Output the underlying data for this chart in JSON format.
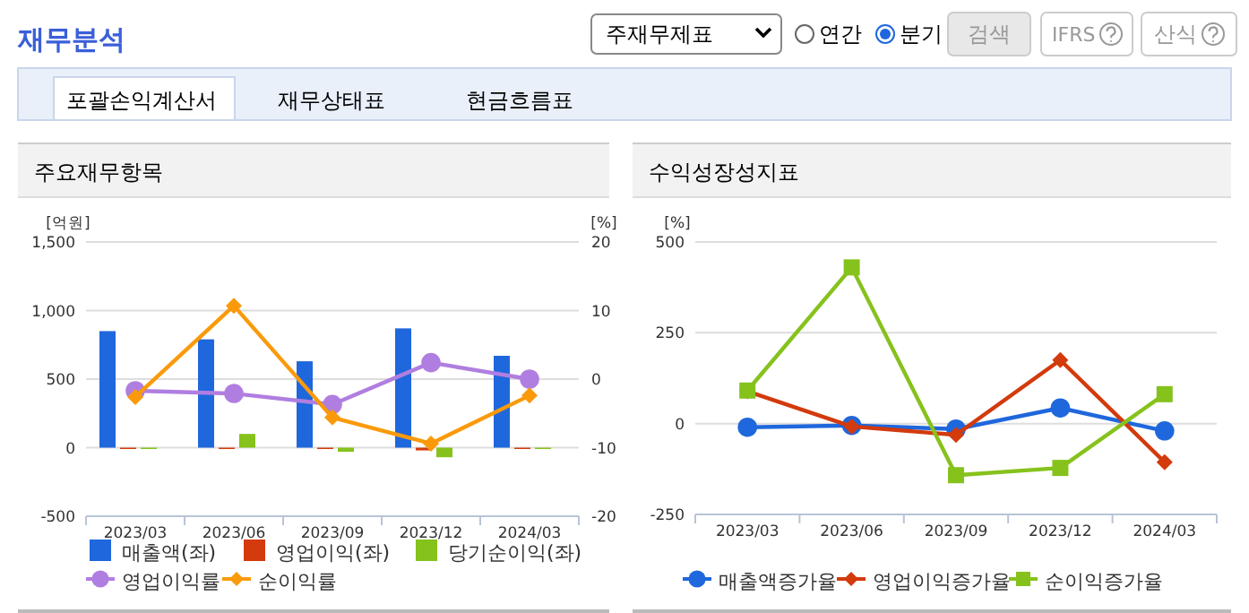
{
  "chart_data": [
    {
      "type": "other",
      "title": "재무분석",
      "annotations": [
        "주재무제표",
        "연간",
        "분기",
        "검색",
        "IFRS",
        "산식",
        "포괄손익계산서",
        "재무상태표",
        "현금흐름표"
      ]
    },
    {
      "type": "bar",
      "title": "주요재무항목",
      "ylabel": "[억원]",
      "y2label": "[%]",
      "categories": [
        "2023/03",
        "2023/06",
        "2023/09",
        "2023/12",
        "2024/03"
      ],
      "series": [
        {
          "name": "매출액(좌)",
          "color": "#1f67dc",
          "values": [
            850,
            790,
            630,
            870,
            670
          ]
        },
        {
          "name": "영업이익(좌)",
          "color": "#d33a0c",
          "values": [
            -10,
            -10,
            -10,
            -20,
            -10
          ]
        },
        {
          "name": "당기순이익(좌)",
          "color": "#86c21c",
          "values": [
            -10,
            100,
            -30,
            -70,
            -10
          ]
        },
        {
          "name": "영업이익률",
          "type": "line",
          "axis": "y2",
          "marker": "circle",
          "color": "#b07ee0",
          "values": [
            -1.7,
            -2.1,
            -3.7,
            2.4,
            0
          ]
        },
        {
          "name": "순이익률",
          "type": "line",
          "axis": "y2",
          "marker": "diamond",
          "color": "#fa9a0b",
          "values": [
            -2.6,
            10.7,
            -5.6,
            -9.4,
            -2.4
          ]
        }
      ],
      "ylim": [
        -500,
        1500
      ],
      "yticks": [
        -500,
        0,
        {
          "value": 500,
          "label": "500"
        },
        {
          "value": 1000,
          "label": "1,000"
        },
        {
          "value": 1500,
          "label": "1,500"
        }
      ],
      "y2lim": [
        -20,
        20
      ],
      "y2ticks": [
        -20,
        -10,
        0,
        10,
        20
      ],
      "grid": "y",
      "legend": "bottom"
    },
    {
      "type": "line",
      "title": "수익성장성지표",
      "ylabel": "[%]",
      "categories": [
        "2023/03",
        "2023/06",
        "2023/09",
        "2023/12",
        "2024/03"
      ],
      "series": [
        {
          "name": "매출액증가율",
          "marker": "circle",
          "color": "#1f67dc",
          "values": [
            -10,
            -5,
            -15,
            43,
            -20
          ]
        },
        {
          "name": "영업이익증가율",
          "marker": "diamond",
          "color": "#d33a0c",
          "values": [
            89,
            -8,
            -31,
            175,
            -106
          ]
        },
        {
          "name": "순이익증가율",
          "marker": "square",
          "color": "#86c21c",
          "values": [
            91,
            430,
            -142,
            -122,
            81
          ]
        }
      ],
      "ylim": [
        -250,
        500
      ],
      "yticks": [
        -250,
        0,
        250,
        500
      ],
      "grid": "y",
      "legend": "bottom"
    }
  ]
}
